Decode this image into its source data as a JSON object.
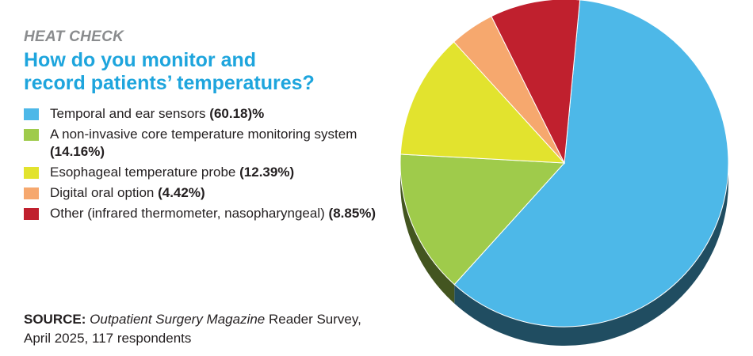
{
  "header": {
    "kicker": "HEAT CHECK",
    "title_line1": "How do you monitor and",
    "title_line2": "record patients’ temperatures?"
  },
  "chart_data": {
    "type": "pie",
    "title": "How do you monitor and record patients’ temperatures?",
    "slices": [
      {
        "label": "Temporal and ear sensors",
        "value": 60.18,
        "display": "(60.18)%",
        "color": "#4db8e8"
      },
      {
        "label": "A non-invasive core temperature monitoring system",
        "value": 14.16,
        "display": "(14.16%)",
        "color": "#9fcb4b"
      },
      {
        "label": "Esophageal temperature probe",
        "value": 12.39,
        "display": "(12.39%)",
        "color": "#e2e32e"
      },
      {
        "label": "Digital oral option",
        "value": 4.42,
        "display": "(4.42%)",
        "color": "#f6a86e"
      },
      {
        "label": "Other (infrared thermometer, nasopharyngeal)",
        "value": 8.85,
        "display": "(8.85%)",
        "color": "#c0202e"
      }
    ]
  },
  "source": {
    "label": "SOURCE:",
    "publication": "Outpatient Surgery Magazine",
    "rest": " Reader Survey,",
    "line2": "April 2025, 117 respondents"
  },
  "colors": {
    "title_blue": "#1ea5dd",
    "kicker_gray": "#8a8c8e"
  }
}
